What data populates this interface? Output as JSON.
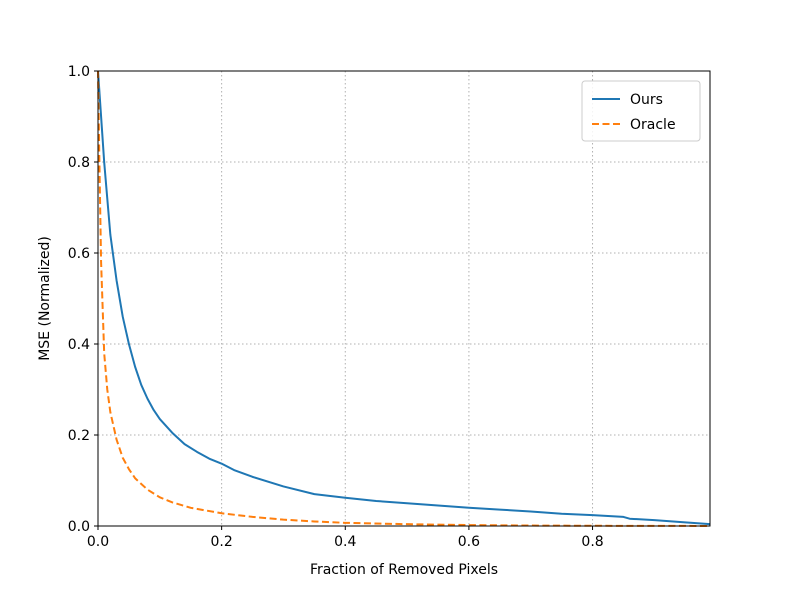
{
  "chart_data": {
    "type": "line",
    "title": "",
    "xlabel": "Fraction of Removed Pixels",
    "ylabel": "MSE (Normalized)",
    "xlim": [
      0.0,
      0.99
    ],
    "ylim": [
      0.0,
      1.0
    ],
    "xticks": [
      {
        "value": 0.0,
        "label": "0.0"
      },
      {
        "value": 0.2,
        "label": "0.2"
      },
      {
        "value": 0.4,
        "label": "0.4"
      },
      {
        "value": 0.6,
        "label": "0.6"
      },
      {
        "value": 0.8,
        "label": "0.8"
      }
    ],
    "yticks": [
      {
        "value": 0.0,
        "label": "0.0"
      },
      {
        "value": 0.2,
        "label": "0.2"
      },
      {
        "value": 0.4,
        "label": "0.4"
      },
      {
        "value": 0.6,
        "label": "0.6"
      },
      {
        "value": 0.8,
        "label": "0.8"
      },
      {
        "value": 1.0,
        "label": "1.0"
      }
    ],
    "grid": true,
    "legend_position": "top-right",
    "series": [
      {
        "name": "Ours",
        "color": "#1f77b4",
        "style": "solid",
        "x": [
          0.0,
          0.005,
          0.01,
          0.015,
          0.02,
          0.03,
          0.04,
          0.05,
          0.06,
          0.07,
          0.08,
          0.09,
          0.1,
          0.12,
          0.14,
          0.16,
          0.18,
          0.2,
          0.22,
          0.25,
          0.3,
          0.35,
          0.4,
          0.45,
          0.5,
          0.55,
          0.6,
          0.65,
          0.7,
          0.75,
          0.8,
          0.85,
          0.86,
          0.9,
          0.95,
          0.99
        ],
        "y": [
          1.0,
          0.9,
          0.8,
          0.72,
          0.64,
          0.54,
          0.46,
          0.4,
          0.35,
          0.31,
          0.28,
          0.255,
          0.235,
          0.205,
          0.18,
          0.163,
          0.148,
          0.137,
          0.123,
          0.108,
          0.087,
          0.07,
          0.062,
          0.055,
          0.05,
          0.045,
          0.04,
          0.036,
          0.032,
          0.027,
          0.024,
          0.02,
          0.016,
          0.013,
          0.008,
          0.004
        ]
      },
      {
        "name": "Oracle",
        "color": "#ff7f0e",
        "style": "dashed",
        "x": [
          0.0,
          0.002,
          0.005,
          0.008,
          0.01,
          0.015,
          0.02,
          0.03,
          0.04,
          0.05,
          0.06,
          0.08,
          0.1,
          0.12,
          0.15,
          0.2,
          0.25,
          0.3,
          0.35,
          0.4,
          0.5,
          0.6,
          0.7,
          0.8,
          0.9,
          0.99
        ],
        "y": [
          1.0,
          0.82,
          0.58,
          0.46,
          0.38,
          0.3,
          0.25,
          0.19,
          0.15,
          0.125,
          0.105,
          0.08,
          0.063,
          0.052,
          0.04,
          0.028,
          0.02,
          0.014,
          0.01,
          0.007,
          0.004,
          0.002,
          0.001,
          0.0005,
          0.0002,
          0.0001
        ]
      }
    ]
  }
}
